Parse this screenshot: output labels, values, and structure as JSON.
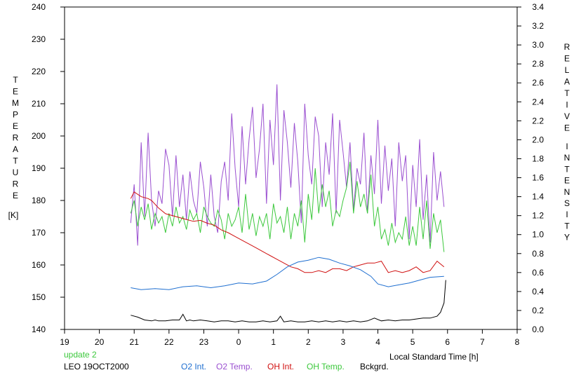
{
  "chart_data": {
    "type": "line",
    "title": "",
    "xlabel": "Local Standard Time [h]",
    "ylabel_left": "TEMPERATURE [K]",
    "ylabel_left_letters": [
      "T",
      "E",
      "M",
      "P",
      "E",
      "R",
      "A",
      "T",
      "U",
      "R",
      "E"
    ],
    "ylabel_left_unit": "[K]",
    "ylabel_right": "RELATIVE INTENSITY",
    "ylabel_right_letters": [
      "R",
      "E",
      "L",
      "A",
      "T",
      "I",
      "V",
      "E"
    ],
    "ylabel_right_letters_2": [
      "I",
      "N",
      "T",
      "E",
      "N",
      "S",
      "I",
      "T",
      "Y"
    ],
    "xlim": [
      19,
      32
    ],
    "ylim_left": [
      140,
      240
    ],
    "ylim_right": [
      0.0,
      3.4
    ],
    "x_ticks": [
      19,
      20,
      21,
      22,
      23,
      24,
      25,
      26,
      27,
      28,
      29,
      30,
      31,
      32
    ],
    "x_tick_labels": [
      "19",
      "20",
      "21",
      "22",
      "23",
      "0",
      "1",
      "2",
      "3",
      "4",
      "5",
      "6",
      "7",
      "8"
    ],
    "y_left_ticks": [
      140,
      150,
      160,
      170,
      180,
      190,
      200,
      210,
      220,
      230,
      240
    ],
    "y_left_tick_labels": [
      "140",
      "150",
      "160",
      "170",
      "180",
      "190",
      "200",
      "210",
      "220",
      "230",
      "240"
    ],
    "y_right_ticks": [
      0.0,
      0.2,
      0.4,
      0.6,
      0.8,
      1.0,
      1.2,
      1.4,
      1.6,
      1.8,
      2.0,
      2.2,
      2.4,
      2.6,
      2.8,
      3.0,
      3.2,
      3.4
    ],
    "y_right_tick_labels": [
      "0.0",
      "0.2",
      "0.4",
      "0.6",
      "0.8",
      "1.0",
      "1.2",
      "1.4",
      "1.6",
      "1.8",
      "2.0",
      "2.2",
      "2.4",
      "2.6",
      "2.8",
      "3.0",
      "3.2",
      "3.4"
    ],
    "grid": false,
    "annotations": {
      "update": "update 2",
      "station": "LEO 19OCT2000"
    },
    "series": [
      {
        "name": "O2 Int.",
        "axis": "right",
        "color": "#1f6fd0",
        "x": [
          20.9,
          21.2,
          21.6,
          22.0,
          22.4,
          22.8,
          23.2,
          23.6,
          24.0,
          24.4,
          24.8,
          25.1,
          25.4,
          25.7,
          26.0,
          26.3,
          26.6,
          26.9,
          27.2,
          27.5,
          27.8,
          28.0,
          28.3,
          28.6,
          28.9,
          29.2,
          29.5,
          29.9
        ],
        "y": [
          0.44,
          0.42,
          0.43,
          0.42,
          0.45,
          0.46,
          0.44,
          0.46,
          0.49,
          0.48,
          0.51,
          0.58,
          0.66,
          0.71,
          0.73,
          0.76,
          0.74,
          0.7,
          0.67,
          0.63,
          0.56,
          0.48,
          0.45,
          0.47,
          0.49,
          0.52,
          0.55,
          0.56
        ]
      },
      {
        "name": "O2 Temp.",
        "axis": "left",
        "color": "#9a4fd0",
        "x": [
          20.9,
          21.0,
          21.1,
          21.2,
          21.3,
          21.4,
          21.5,
          21.6,
          21.7,
          21.8,
          21.9,
          22.0,
          22.1,
          22.2,
          22.3,
          22.4,
          22.5,
          22.6,
          22.7,
          22.8,
          22.9,
          23.0,
          23.1,
          23.2,
          23.3,
          23.4,
          23.5,
          23.6,
          23.7,
          23.8,
          23.9,
          24.0,
          24.1,
          24.2,
          24.3,
          24.4,
          24.5,
          24.6,
          24.7,
          24.8,
          24.9,
          25.0,
          25.1,
          25.2,
          25.3,
          25.4,
          25.5,
          25.6,
          25.7,
          25.8,
          25.9,
          26.0,
          26.1,
          26.2,
          26.3,
          26.4,
          26.5,
          26.6,
          26.7,
          26.8,
          26.9,
          27.0,
          27.1,
          27.2,
          27.3,
          27.4,
          27.5,
          27.6,
          27.7,
          27.8,
          27.9,
          28.0,
          28.1,
          28.2,
          28.3,
          28.4,
          28.5,
          28.6,
          28.7,
          28.8,
          28.9,
          29.0,
          29.1,
          29.2,
          29.3,
          29.4,
          29.5,
          29.6,
          29.7,
          29.8,
          29.9
        ],
        "y": [
          173,
          185,
          166,
          198,
          175,
          201,
          180,
          172,
          183,
          179,
          196,
          191,
          175,
          194,
          178,
          188,
          174,
          189,
          180,
          176,
          192,
          184,
          172,
          188,
          175,
          170,
          186,
          192,
          180,
          207,
          190,
          178,
          203,
          185,
          199,
          209,
          187,
          196,
          210,
          179,
          205,
          191,
          216,
          180,
          208,
          198,
          184,
          204,
          192,
          173,
          210,
          194,
          185,
          206,
          200,
          178,
          198,
          188,
          207,
          176,
          205,
          195,
          184,
          198,
          177,
          190,
          185,
          201,
          176,
          194,
          182,
          205,
          179,
          197,
          183,
          193,
          172,
          198,
          186,
          194,
          168,
          191,
          178,
          199,
          174,
          188,
          167,
          195,
          180,
          189,
          178
        ]
      },
      {
        "name": "OH Int.",
        "axis": "right",
        "color": "#d01010",
        "x": [
          20.9,
          21.0,
          21.2,
          21.4,
          21.5,
          21.7,
          21.9,
          22.1,
          22.3,
          22.5,
          22.7,
          22.9,
          23.1,
          23.3,
          23.5,
          23.7,
          23.9,
          24.1,
          24.3,
          24.5,
          24.7,
          24.9,
          25.1,
          25.3,
          25.5,
          25.7,
          25.9,
          26.1,
          26.3,
          26.5,
          26.7,
          26.9,
          27.1,
          27.3,
          27.5,
          27.7,
          27.9,
          28.1,
          28.3,
          28.5,
          28.7,
          28.9,
          29.1,
          29.3,
          29.5,
          29.7,
          29.9
        ],
        "y": [
          1.38,
          1.45,
          1.4,
          1.38,
          1.36,
          1.28,
          1.22,
          1.2,
          1.18,
          1.16,
          1.14,
          1.15,
          1.12,
          1.1,
          1.05,
          1.02,
          0.98,
          0.94,
          0.9,
          0.86,
          0.82,
          0.78,
          0.74,
          0.7,
          0.66,
          0.64,
          0.6,
          0.6,
          0.62,
          0.6,
          0.64,
          0.64,
          0.62,
          0.66,
          0.68,
          0.7,
          0.7,
          0.72,
          0.6,
          0.62,
          0.6,
          0.62,
          0.66,
          0.6,
          0.62,
          0.72,
          0.66
        ]
      },
      {
        "name": "OH Temp.",
        "axis": "left",
        "color": "#3cc83c",
        "x": [
          20.9,
          21.0,
          21.1,
          21.2,
          21.3,
          21.4,
          21.5,
          21.6,
          21.7,
          21.8,
          21.9,
          22.0,
          22.1,
          22.2,
          22.3,
          22.4,
          22.5,
          22.6,
          22.7,
          22.8,
          22.9,
          23.0,
          23.1,
          23.2,
          23.3,
          23.4,
          23.5,
          23.6,
          23.7,
          23.8,
          23.9,
          24.0,
          24.1,
          24.2,
          24.3,
          24.4,
          24.5,
          24.6,
          24.7,
          24.8,
          24.9,
          25.0,
          25.1,
          25.2,
          25.3,
          25.4,
          25.5,
          25.6,
          25.7,
          25.8,
          25.9,
          26.0,
          26.1,
          26.2,
          26.3,
          26.4,
          26.5,
          26.6,
          26.7,
          26.8,
          26.9,
          27.0,
          27.1,
          27.2,
          27.3,
          27.4,
          27.5,
          27.6,
          27.7,
          27.8,
          27.9,
          28.0,
          28.1,
          28.2,
          28.3,
          28.4,
          28.5,
          28.6,
          28.7,
          28.8,
          28.9,
          29.0,
          29.1,
          29.2,
          29.3,
          29.4,
          29.5,
          29.6,
          29.7,
          29.8,
          29.9
        ],
        "y": [
          176,
          180,
          172,
          178,
          174,
          179,
          171,
          176,
          173,
          175,
          170,
          176,
          172,
          178,
          173,
          175,
          171,
          177,
          174,
          176,
          170,
          178,
          175,
          173,
          172,
          177,
          174,
          168,
          176,
          172,
          174,
          178,
          170,
          182,
          171,
          176,
          169,
          175,
          172,
          176,
          168,
          179,
          173,
          175,
          170,
          178,
          168,
          176,
          172,
          180,
          167,
          182,
          174,
          190,
          176,
          185,
          178,
          183,
          172,
          177,
          175,
          180,
          184,
          192,
          176,
          186,
          178,
          182,
          176,
          188,
          172,
          178,
          168,
          171,
          166,
          173,
          167,
          170,
          168,
          175,
          166,
          172,
          166,
          178,
          168,
          180,
          165,
          176,
          170,
          174,
          164
        ]
      },
      {
        "name": "Bckgrd.",
        "axis": "right",
        "color": "#000000",
        "x": [
          20.9,
          21.1,
          21.3,
          21.5,
          21.6,
          21.7,
          21.9,
          22.1,
          22.3,
          22.4,
          22.5,
          22.6,
          22.7,
          22.9,
          23.1,
          23.3,
          23.5,
          23.7,
          23.9,
          24.1,
          24.3,
          24.5,
          24.7,
          24.9,
          25.1,
          25.2,
          25.3,
          25.5,
          25.7,
          25.9,
          26.1,
          26.3,
          26.5,
          26.7,
          26.9,
          27.1,
          27.3,
          27.5,
          27.7,
          27.9,
          28.1,
          28.3,
          28.5,
          28.7,
          28.9,
          29.1,
          29.3,
          29.5,
          29.7,
          29.8,
          29.9,
          29.95
        ],
        "y": [
          0.15,
          0.13,
          0.1,
          0.09,
          0.1,
          0.09,
          0.09,
          0.1,
          0.1,
          0.16,
          0.09,
          0.1,
          0.09,
          0.1,
          0.09,
          0.08,
          0.09,
          0.09,
          0.08,
          0.09,
          0.08,
          0.08,
          0.09,
          0.08,
          0.09,
          0.14,
          0.08,
          0.09,
          0.08,
          0.08,
          0.09,
          0.08,
          0.09,
          0.08,
          0.09,
          0.08,
          0.09,
          0.08,
          0.09,
          0.12,
          0.09,
          0.1,
          0.09,
          0.1,
          0.1,
          0.11,
          0.12,
          0.12,
          0.14,
          0.18,
          0.28,
          0.52
        ]
      }
    ]
  }
}
